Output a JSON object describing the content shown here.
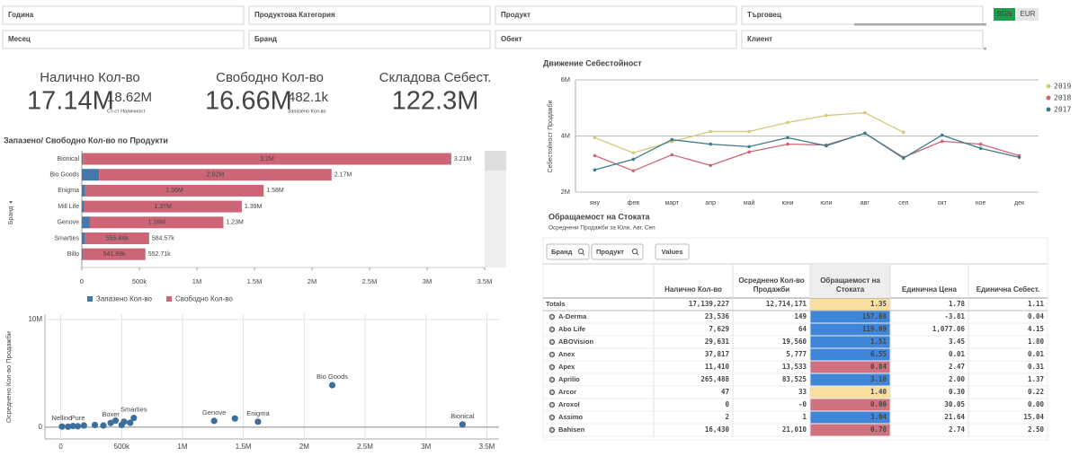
{
  "filters": {
    "row1": [
      "Година",
      "Продуктова Категория",
      "Продукт",
      "Търговец"
    ],
    "row2": [
      "Месец",
      "Бранд",
      "Обект",
      "Клиент"
    ]
  },
  "currency": [
    "BGN",
    "EUR"
  ],
  "kpis": [
    {
      "title": "Налично Кол-во",
      "value": "17.14M",
      "sub_value": "18.62M",
      "sub_label": "Ст-ст Наличност"
    },
    {
      "title": "Свободно Кол-во",
      "value": "16.66M",
      "sub_value": "482.1k",
      "sub_label": "Запазено Кол-во"
    },
    {
      "title": "Складова Себест.",
      "value": "122.3M"
    }
  ],
  "chart_data": [
    {
      "type": "bar",
      "orientation": "horizontal",
      "stacked": true,
      "title": "Запазено/ Свободно Кол-во по Продукти",
      "y_label": "Бранд",
      "categories": [
        "Bionical",
        "Bio Goods",
        "Enigma",
        "Mill Life",
        "Genove",
        "Smarties",
        "Billo"
      ],
      "series": [
        {
          "name": "Запазено Кол-во",
          "color": "#4477aa",
          "values": [
            10000,
            150000,
            30000,
            20000,
            70000,
            28730,
            10820
          ]
        },
        {
          "name": "Свободно Кол-во",
          "color": "#cc6677",
          "values": [
            3200000,
            2020000,
            1550000,
            1370000,
            1160000,
            555840,
            541890
          ],
          "value_labels": [
            "3.2M",
            "2.02M",
            "1.55M",
            "1.37M",
            "1.16M",
            "555.84k",
            "541.89k"
          ]
        }
      ],
      "total_labels": [
        "3.21M",
        "2.17M",
        "1.58M",
        "1.39M",
        "1.23M",
        "584.57k",
        "552.71k"
      ],
      "xlim": [
        0,
        3500000
      ],
      "xticks": [
        0,
        {
          "value": 500000,
          "label": "500k"
        },
        {
          "value": 1000000,
          "label": "1M"
        },
        {
          "value": 1500000,
          "label": "1.5M"
        },
        {
          "value": 2000000,
          "label": "2M"
        },
        {
          "value": 2500000,
          "label": "2.5M"
        },
        {
          "value": 3000000,
          "label": "3M"
        },
        {
          "value": 3500000,
          "label": "3.5M"
        }
      ],
      "legend": "bottom"
    },
    {
      "type": "scatter",
      "y_label": "Осреднено Кол-во Продажби",
      "color": "#3d6e9c",
      "grid": true,
      "x": [
        10000,
        140000,
        60000,
        100000,
        190000,
        280000,
        410000,
        450000,
        350000,
        500000,
        520000,
        600000,
        570000,
        1260000,
        1430000,
        1620000,
        2230000,
        3300000
      ],
      "values": [
        50000,
        80000,
        40000,
        100000,
        150000,
        200000,
        380000,
        600000,
        150000,
        200000,
        500000,
        850000,
        400000,
        580000,
        800000,
        500000,
        3900000,
        250000
      ],
      "labels": [
        "Nellino",
        "Pure",
        null,
        null,
        null,
        null,
        "Boxer",
        null,
        null,
        null,
        null,
        "Smarties",
        null,
        "Genove",
        null,
        "Enigma",
        "Bio Goods",
        "Bionical"
      ],
      "xlim": [
        -130000,
        3600000
      ],
      "ylim": [
        -1100000,
        10500000
      ],
      "xticks": [
        0,
        {
          "value": 500000,
          "label": "500k"
        },
        {
          "value": 1000000,
          "label": "1M"
        },
        {
          "value": 1500000,
          "label": "1.5M"
        },
        {
          "value": 2000000,
          "label": "2M"
        },
        {
          "value": 2500000,
          "label": "2.5M"
        },
        {
          "value": 3000000,
          "label": "3M"
        },
        {
          "value": 3500000,
          "label": "3.5M"
        }
      ],
      "yticks": [
        0,
        {
          "value": 10000000,
          "label": "10M"
        }
      ]
    },
    {
      "type": "line",
      "title": "Движение Себестойност",
      "y_label": "Себестойност Продажби",
      "grid": true,
      "legend": "top-right",
      "categories": [
        "яну",
        "фев",
        "март",
        "апр",
        "май",
        "юни",
        "юли",
        "авг",
        "сеп",
        "окт",
        "ное",
        "дек"
      ],
      "series": [
        {
          "name": "2019",
          "color": "#d4c87a",
          "values": [
            3940000,
            3400000,
            3800000,
            4160000,
            4160000,
            4480000,
            4730000,
            4830000,
            4130000,
            null,
            null,
            null
          ]
        },
        {
          "name": "2018",
          "color": "#cc6677",
          "values": [
            3300000,
            2760000,
            3330000,
            2950000,
            3430000,
            3710000,
            3680000,
            4100000,
            3240000,
            3810000,
            3710000,
            3300000
          ]
        },
        {
          "name": "2017",
          "color": "#3d7c8c",
          "values": [
            2790000,
            3170000,
            3870000,
            3710000,
            3620000,
            3940000,
            3650000,
            4100000,
            3210000,
            4030000,
            3560000,
            3240000
          ]
        }
      ],
      "ylim": [
        2000000,
        6000000
      ],
      "yticks": [
        {
          "value": 2000000,
          "label": "2M"
        },
        {
          "value": 4000000,
          "label": "4M"
        },
        {
          "value": 6000000,
          "label": "6M"
        }
      ]
    }
  ],
  "table": {
    "title": "Обращаемост на Стоката",
    "subtitle": "Осреднени Продажби за Юли, Авг, Сеп",
    "buttons": [
      "Бранд",
      "Продукт"
    ],
    "values_button": "Values",
    "columns": [
      "Налично Кол-во",
      "Осреднено Кол-во Продажби",
      "Обращаемост на Стоката",
      "Единична Цена",
      "Единична Себест."
    ],
    "rows": [
      [
        "Totals",
        "17,139,227",
        "12,714,171",
        "1.35",
        "1.78",
        "1.11"
      ],
      [
        "A-Derma",
        "23,536",
        "149",
        "157.88",
        "-3.81",
        "0.04"
      ],
      [
        "Abo Life",
        "7,629",
        "64",
        "119.09",
        "1,077.06",
        "4.15"
      ],
      [
        "ABOVision",
        "29,631",
        "19,560",
        "1.51",
        "3.45",
        "1.80"
      ],
      [
        "Anex",
        "37,817",
        "5,777",
        "6.55",
        "0.01",
        "0.01"
      ],
      [
        "Apex",
        "11,410",
        "13,533",
        "0.84",
        "2.47",
        "0.31"
      ],
      [
        "Aprilio",
        "265,488",
        "83,525",
        "3.18",
        "2.00",
        "1.37"
      ],
      [
        "Arcor",
        "47",
        "33",
        "1.40",
        "0.30",
        "0.22"
      ],
      [
        "Aroxol",
        "0",
        "-0",
        "0.00",
        "30.05",
        "0.00"
      ],
      [
        "Assimo",
        "2",
        "1",
        "3.04",
        "21.64",
        "15.04"
      ],
      [
        "Bahisen",
        "16,430",
        "21,010",
        "0.78",
        "2.74",
        "2.50"
      ]
    ],
    "cell_colors": [
      "#f8dfa0",
      "#3f86d8",
      "#3f86d8",
      "#3f86d8",
      "#3f86d8",
      "#d0717f",
      "#3f86d8",
      "#f8dfa0",
      "#d0717f",
      "#3f86d8",
      "#d0717f"
    ]
  }
}
